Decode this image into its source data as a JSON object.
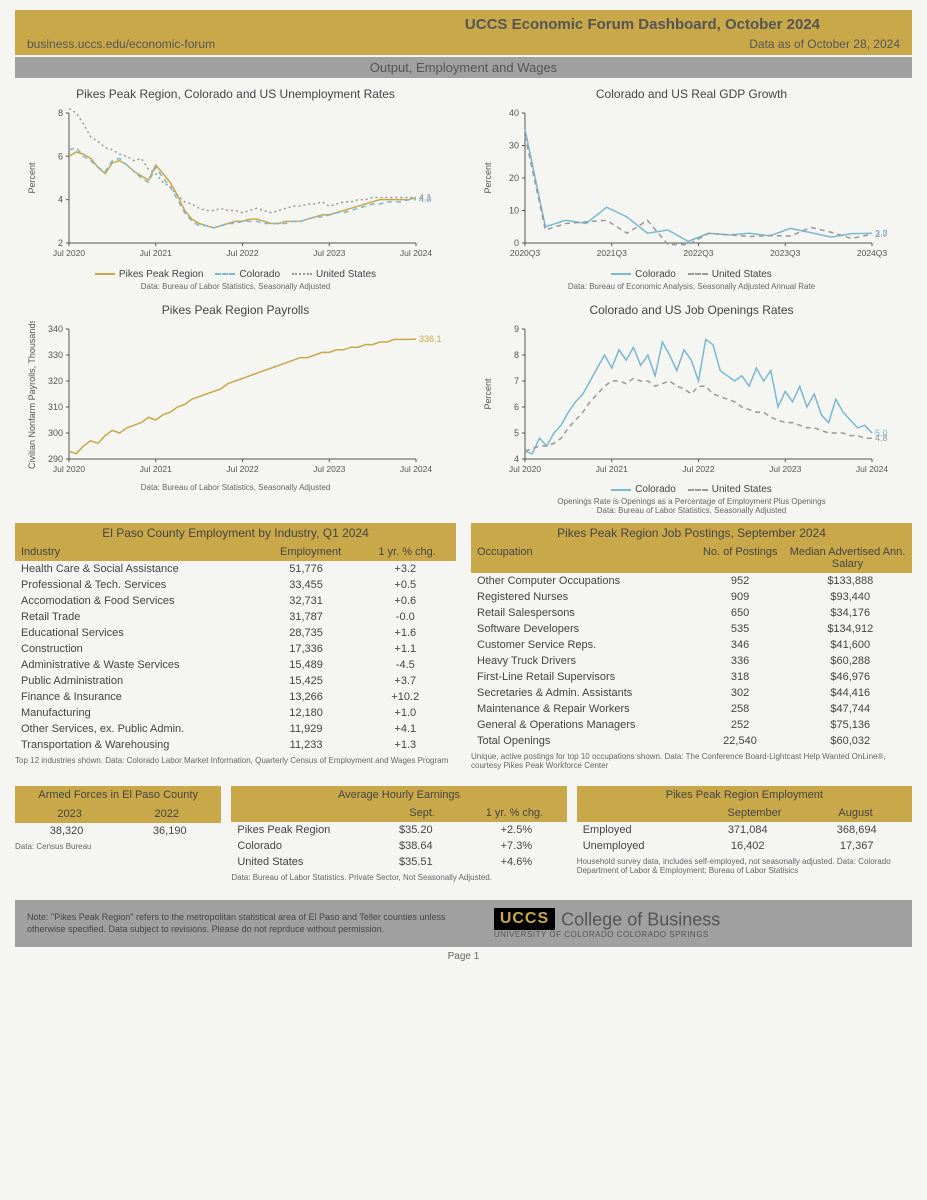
{
  "header": {
    "title": "UCCS Economic Forum Dashboard, October 2024",
    "url": "business.uccs.edu/economic-forum",
    "date": "Data as of October 28, 2024"
  },
  "section1_title": "Output, Employment and Wages",
  "colors": {
    "gold": "#c9a84a",
    "blue": "#7ab8d4",
    "gray": "#999999",
    "axis": "#555555"
  },
  "chart_unemp": {
    "title": "Pikes Peak Region, Colorado and US Unemployment Rates",
    "type": "line",
    "ylabel": "Percent",
    "ylim": [
      2,
      8
    ],
    "ytick_step": 2,
    "xticks": [
      "Jul 2020",
      "Jul 2021",
      "Jul 2022",
      "Jul 2023",
      "Jul 2024"
    ],
    "series": [
      {
        "name": "Pikes Peak Region",
        "color": "#c9a84a",
        "dash": "",
        "end_label": "4.1",
        "y": [
          6.0,
          6.2,
          6.1,
          5.9,
          5.5,
          5.2,
          5.7,
          5.8,
          5.6,
          5.3,
          5.1,
          4.9,
          5.6,
          5.2,
          4.8,
          4.2,
          3.5,
          3.1,
          2.9,
          2.8,
          2.7,
          2.8,
          2.9,
          3.0,
          3.0,
          3.1,
          3.1,
          3.0,
          2.9,
          2.9,
          3.0,
          3.0,
          3.0,
          3.1,
          3.2,
          3.3,
          3.3,
          3.4,
          3.5,
          3.6,
          3.7,
          3.8,
          3.9,
          4.0,
          4.0,
          4.0,
          4.0,
          4.0,
          4.1
        ]
      },
      {
        "name": "Colorado",
        "color": "#7ab8d4",
        "dash": "5,4",
        "end_label": "4.0",
        "y": [
          6.3,
          6.4,
          6.0,
          5.8,
          5.5,
          5.3,
          5.8,
          5.9,
          5.6,
          5.3,
          5.0,
          4.8,
          5.5,
          5.0,
          4.6,
          4.0,
          3.4,
          3.0,
          2.8,
          2.8,
          2.7,
          2.8,
          2.9,
          2.9,
          3.0,
          3.0,
          3.0,
          2.9,
          2.9,
          2.9,
          2.9,
          3.0,
          3.0,
          3.1,
          3.2,
          3.2,
          3.3,
          3.4,
          3.4,
          3.5,
          3.6,
          3.7,
          3.8,
          3.8,
          3.9,
          3.9,
          3.9,
          4.0,
          4.0
        ]
      },
      {
        "name": "United States",
        "color": "#999999",
        "dash": "2,3",
        "end_label": "4.1",
        "y": [
          8.2,
          8.0,
          7.5,
          6.9,
          6.7,
          6.4,
          6.3,
          6.1,
          6.0,
          5.8,
          5.9,
          5.4,
          5.2,
          4.8,
          4.6,
          4.2,
          3.9,
          3.8,
          3.6,
          3.5,
          3.5,
          3.6,
          3.5,
          3.5,
          3.4,
          3.5,
          3.6,
          3.5,
          3.4,
          3.5,
          3.6,
          3.7,
          3.7,
          3.8,
          3.8,
          3.9,
          3.7,
          3.8,
          3.9,
          3.9,
          4.0,
          4.0,
          4.1,
          4.1,
          4.1,
          4.1,
          4.1,
          4.1,
          4.1
        ]
      }
    ],
    "note": "Data: Bureau of Labor Statistics, Seasonally Adjusted"
  },
  "chart_gdp": {
    "title": "Colorado and US Real GDP Growth",
    "type": "line",
    "ylabel": "Percent",
    "ylim": [
      0,
      40
    ],
    "ytick_step": 10,
    "xticks": [
      "2020Q3",
      "2021Q3",
      "2022Q3",
      "2023Q3",
      "2024Q3"
    ],
    "series": [
      {
        "name": "Colorado",
        "color": "#7ab8d4",
        "dash": "",
        "end_label": "3.0",
        "y": [
          35,
          5,
          7,
          6,
          11,
          8,
          3,
          4,
          0.5,
          3,
          2.5,
          3,
          2.2,
          4.5,
          3.2,
          1.8,
          2.9,
          3.0
        ]
      },
      {
        "name": "United States",
        "color": "#999999",
        "dash": "5,4",
        "end_label": "2.7",
        "y": [
          33,
          4,
          6,
          6.5,
          7,
          3,
          7,
          -0.5,
          -0.5,
          3,
          2.5,
          2,
          2.3,
          2.1,
          4.8,
          3.3,
          1.4,
          2.7
        ]
      }
    ],
    "note": "Data: Bureau of Economic Analysis, Seasonally Adjusted Annual Rate"
  },
  "chart_payrolls": {
    "title": "Pikes Peak Region Payrolls",
    "type": "line",
    "ylabel": "Civilian Nonfarm Payrolls, Thousands",
    "ylim": [
      290,
      340
    ],
    "ytick_step": 10,
    "xticks": [
      "Jul 2020",
      "Jul 2021",
      "Jul 2022",
      "Jul 2023",
      "Jul 2024"
    ],
    "series": [
      {
        "name": "Pikes Peak Region",
        "color": "#c9a84a",
        "dash": "",
        "end_label": "336.1",
        "y": [
          293,
          292,
          295,
          297,
          296,
          299,
          301,
          300,
          302,
          303,
          304,
          306,
          305,
          307,
          308,
          310,
          311,
          313,
          314,
          315,
          316,
          317,
          319,
          320,
          321,
          322,
          323,
          324,
          325,
          326,
          327,
          328,
          329,
          329,
          330,
          331,
          331,
          332,
          332,
          333,
          333,
          334,
          334,
          335,
          335,
          336,
          336,
          336,
          336.1
        ]
      }
    ],
    "note": "Data: Bureau of Labor Statistics, Seasonally Adjusted"
  },
  "chart_openings": {
    "title": "Colorado and US Job Openings Rates",
    "type": "line",
    "ylabel": "Percent",
    "ylim": [
      4,
      9
    ],
    "ytick_step": 1,
    "xticks": [
      "Jul 2020",
      "Jul 2021",
      "Jul 2022",
      "Jul 2023",
      "Jul 2024"
    ],
    "series": [
      {
        "name": "Colorado",
        "color": "#7ab8d4",
        "dash": "",
        "end_label": "5.0",
        "y": [
          4.3,
          4.2,
          4.8,
          4.5,
          5.0,
          5.3,
          5.8,
          6.2,
          6.5,
          7.0,
          7.5,
          8.0,
          7.5,
          8.2,
          7.8,
          8.3,
          7.6,
          8.0,
          7.2,
          8.5,
          8.0,
          7.4,
          8.2,
          7.8,
          7.0,
          8.6,
          8.4,
          7.4,
          7.2,
          7.0,
          7.2,
          6.8,
          7.5,
          7.0,
          7.4,
          6.0,
          6.6,
          6.2,
          6.8,
          6.0,
          6.5,
          5.7,
          5.4,
          6.3,
          5.8,
          5.5,
          5.2,
          5.3,
          5.0
        ]
      },
      {
        "name": "United States",
        "color": "#999999",
        "dash": "5,4",
        "end_label": "4.8",
        "y": [
          4.3,
          4.4,
          4.5,
          4.5,
          4.6,
          4.8,
          5.2,
          5.5,
          5.8,
          6.2,
          6.5,
          6.8,
          7.0,
          7.0,
          6.9,
          7.1,
          7.0,
          7.0,
          6.8,
          6.9,
          7.0,
          6.8,
          6.7,
          6.5,
          6.8,
          6.8,
          6.5,
          6.4,
          6.3,
          6.2,
          6.0,
          5.9,
          5.8,
          5.8,
          5.6,
          5.5,
          5.4,
          5.4,
          5.3,
          5.2,
          5.2,
          5.1,
          5.0,
          5.0,
          5.0,
          4.9,
          4.9,
          4.8,
          4.8
        ]
      }
    ],
    "note": "Openings Rate is Openings as a Percentage of Employment Plus Openings\nData: Bureau of Labor Statistics, Seasonally Adjusted"
  },
  "table_industry": {
    "title": "El Paso County Employment by Industry, Q1 2024",
    "cols": [
      "Industry",
      "Employment",
      "1 yr. % chg."
    ],
    "rows": [
      [
        "Health Care & Social Assistance",
        "51,776",
        "+3.2"
      ],
      [
        "Professional & Tech. Services",
        "33,455",
        "+0.5"
      ],
      [
        "Accomodation & Food Services",
        "32,731",
        "+0.6"
      ],
      [
        "Retail Trade",
        "31,787",
        "-0.0"
      ],
      [
        "Educational Services",
        "28,735",
        "+1.6"
      ],
      [
        "Construction",
        "17,336",
        "+1.1"
      ],
      [
        "Administrative & Waste Services",
        "15,489",
        "-4.5"
      ],
      [
        "Public Administration",
        "15,425",
        "+3.7"
      ],
      [
        "Finance & Insurance",
        "13,266",
        "+10.2"
      ],
      [
        "Manufacturing",
        "12,180",
        "+1.0"
      ],
      [
        "Other Services, ex. Public Admin.",
        "11,929",
        "+4.1"
      ],
      [
        "Transportation & Warehousing",
        "11,233",
        "+1.3"
      ]
    ],
    "note": "Top 12 industries shown. Data: Colorado Labor Market Information, Quarterly Census of Employment and Wages Program"
  },
  "table_postings": {
    "title": "Pikes Peak Region Job Postings, September 2024",
    "cols": [
      "Occupation",
      "No. of Postings",
      "Median Advertised Ann. Salary"
    ],
    "rows": [
      [
        "Other Computer Occupations",
        "952",
        "$133,888"
      ],
      [
        "Registered Nurses",
        "909",
        "$93,440"
      ],
      [
        "Retail Salespersons",
        "650",
        "$34,176"
      ],
      [
        "Software Developers",
        "535",
        "$134,912"
      ],
      [
        "Customer Service Reps.",
        "346",
        "$41,600"
      ],
      [
        "Heavy Truck Drivers",
        "336",
        "$60,288"
      ],
      [
        "First-Line Retail Supervisors",
        "318",
        "$46,976"
      ],
      [
        "Secretaries & Admin. Assistants",
        "302",
        "$44,416"
      ],
      [
        "Maintenance & Repair Workers",
        "258",
        "$47,744"
      ],
      [
        "General & Operations Managers",
        "252",
        "$75,136"
      ],
      [
        "Total Openings",
        "22,540",
        "$60,032"
      ]
    ],
    "note": "Unique, active postings for top 10 occupations shown. Data: The Conference Board-Lightcast Help Wanted OnLine®, courtesy Pikes Peak Workforce Center"
  },
  "panel_armed": {
    "title": "Armed Forces in El Paso County",
    "cols": [
      "2023",
      "2022"
    ],
    "row": [
      "38,320",
      "36,190"
    ],
    "note": "Data: Census Bureau"
  },
  "panel_earnings": {
    "title": "Average Hourly Earnings",
    "cols": [
      "",
      "Sept.",
      "1 yr. % chg."
    ],
    "rows": [
      [
        "Pikes Peak Region",
        "$35.20",
        "+2.5%"
      ],
      [
        "Colorado",
        "$38.64",
        "+7.3%"
      ],
      [
        "United States",
        "$35.51",
        "+4.6%"
      ]
    ],
    "note": "Data: Bureau of Labor Statistics.  Private Sector, Not Seasonally Adjusted."
  },
  "panel_employment": {
    "title": "Pikes Peak Region Employment",
    "cols": [
      "",
      "September",
      "August"
    ],
    "rows": [
      [
        "Employed",
        "371,084",
        "368,694"
      ],
      [
        "Unemployed",
        "16,402",
        "17,367"
      ]
    ],
    "note": "Household survey data, includes self-employed, not seasonally adjusted. Data: Colorado Department of Labor & Employment; Bureau of Labor Statisics"
  },
  "footer": {
    "note": "Note: \"Pikes Peak Region\" refers to the metropolitan statistical area of El Paso and Teller counties unless otherwise specified.  Data subject to revisions.  Please do not reprduce without permission.",
    "logo": "UCCS",
    "cob": "College of Business",
    "sub": "UNIVERSITY OF COLORADO COLORADO SPRINGS",
    "page": "Page 1"
  }
}
